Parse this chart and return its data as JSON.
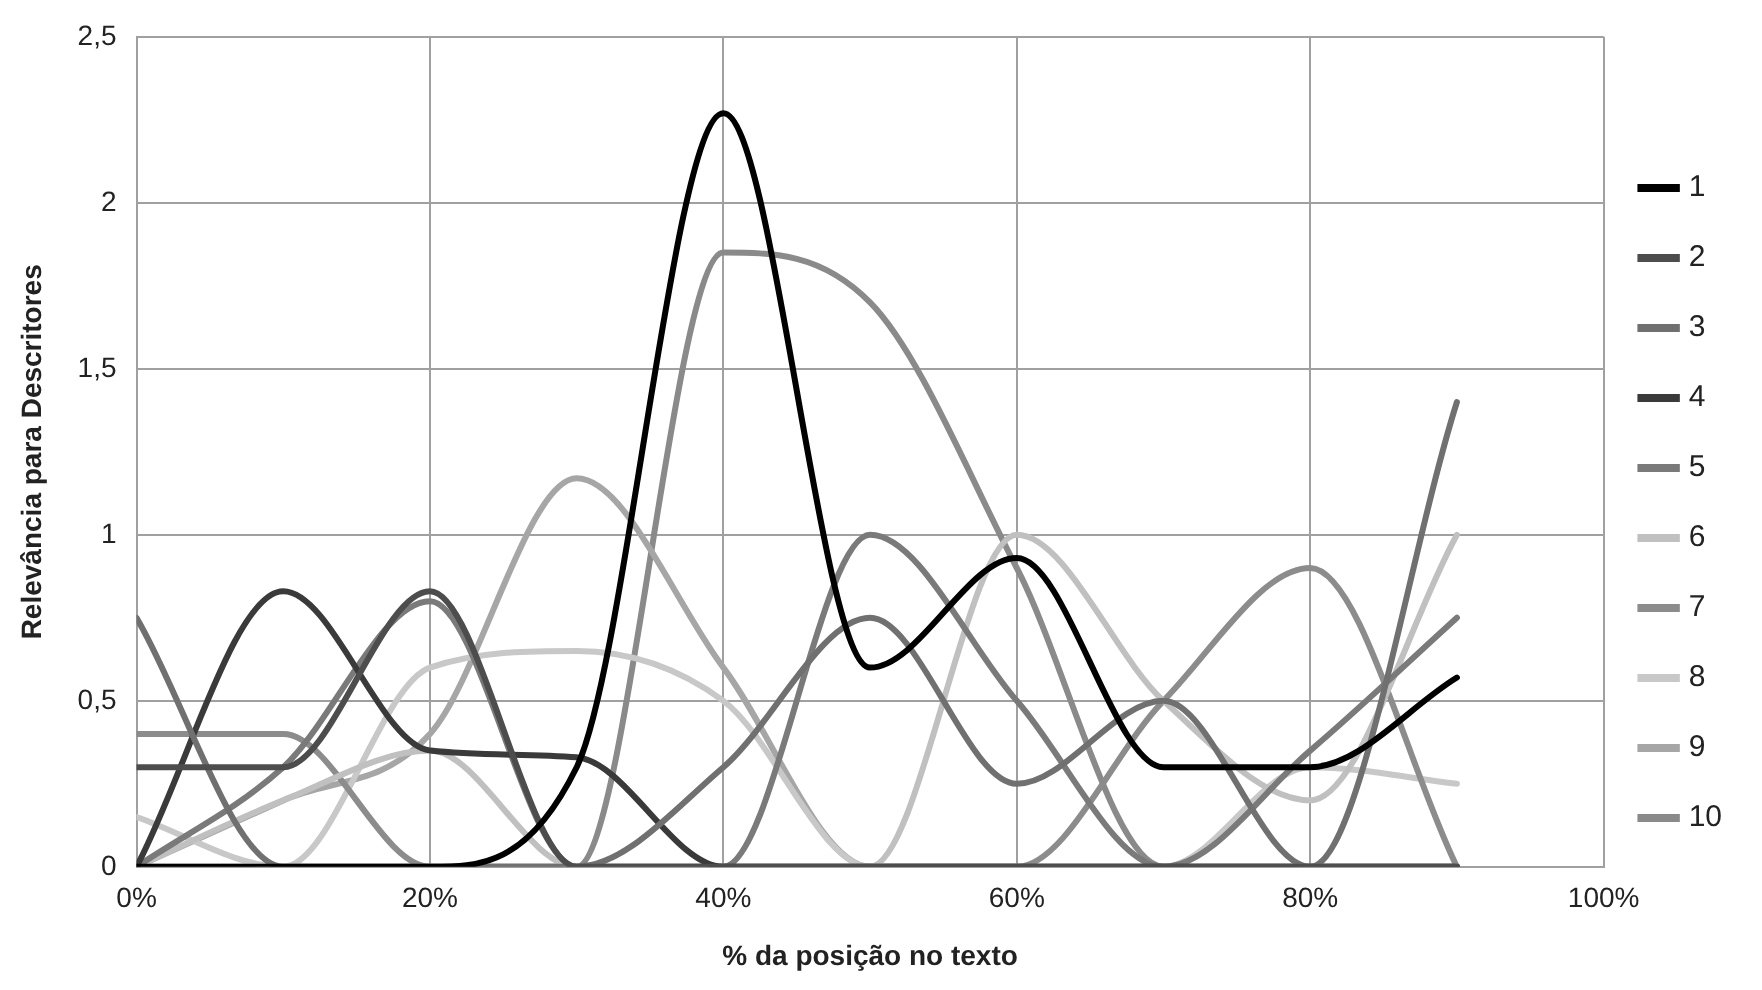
{
  "chart_data": {
    "type": "line",
    "xlabel": "% da posição no texto",
    "ylabel": "Relevância para Descritores",
    "x": [
      0,
      10,
      20,
      30,
      40,
      50,
      60,
      70,
      80,
      90
    ],
    "xlim": [
      0,
      100
    ],
    "xticks": [
      {
        "value": 0,
        "label": "0%"
      },
      {
        "value": 20,
        "label": "20%"
      },
      {
        "value": 40,
        "label": "40%"
      },
      {
        "value": 60,
        "label": "60%"
      },
      {
        "value": 80,
        "label": "80%"
      },
      {
        "value": 100,
        "label": "100%"
      }
    ],
    "ylim": [
      0,
      2.5
    ],
    "yticks": [
      0,
      {
        "value": 0.5,
        "label": "0,5"
      },
      1,
      {
        "value": 1.5,
        "label": "1,5"
      },
      2,
      {
        "value": 2.5,
        "label": "2,5"
      }
    ],
    "grid": true,
    "legend": "right",
    "marker": "none",
    "line_style": "solid",
    "series": [
      {
        "name": "1",
        "color": "#000000",
        "values": [
          0,
          0,
          0,
          0.3,
          2.27,
          0.6,
          0.93,
          0.3,
          0.3,
          0.57
        ]
      },
      {
        "name": "2",
        "color": "#4d4d4d",
        "values": [
          0.3,
          0.3,
          0.83,
          0,
          0,
          0,
          0,
          0,
          0,
          0
        ]
      },
      {
        "name": "3",
        "color": "#707070",
        "values": [
          0.75,
          0,
          0,
          0,
          0.3,
          0.75,
          0.25,
          0.5,
          0,
          1.4
        ]
      },
      {
        "name": "4",
        "color": "#3a3a3a",
        "values": [
          0,
          0.83,
          0.35,
          0.33,
          0,
          0,
          0,
          0,
          0,
          0
        ]
      },
      {
        "name": "5",
        "color": "#7a7a7a",
        "values": [
          0,
          0.3,
          0.8,
          0,
          0,
          1.0,
          0.5,
          0,
          0.35,
          0.75
        ]
      },
      {
        "name": "6",
        "color": "#c0c0c0",
        "values": [
          0,
          0.2,
          0.35,
          0,
          0,
          0,
          1.0,
          0.5,
          0.2,
          1.0
        ]
      },
      {
        "name": "7",
        "color": "#8c8c8c",
        "values": [
          0.4,
          0.4,
          0,
          0,
          0,
          0,
          0,
          0.5,
          0.9,
          0
        ]
      },
      {
        "name": "8",
        "color": "#c8c8c8",
        "values": [
          0.15,
          0,
          0.6,
          0.65,
          0.5,
          0,
          0,
          0,
          0.3,
          0.25
        ]
      },
      {
        "name": "9",
        "color": "#a6a6a6",
        "values": [
          0,
          0.2,
          0.4,
          1.17,
          0.6,
          0,
          0,
          0,
          0,
          0
        ]
      },
      {
        "name": "10",
        "color": "#8a8a8a",
        "values": [
          0,
          0,
          0,
          0,
          1.85,
          1.7,
          0.9,
          0,
          0,
          0
        ]
      }
    ]
  }
}
